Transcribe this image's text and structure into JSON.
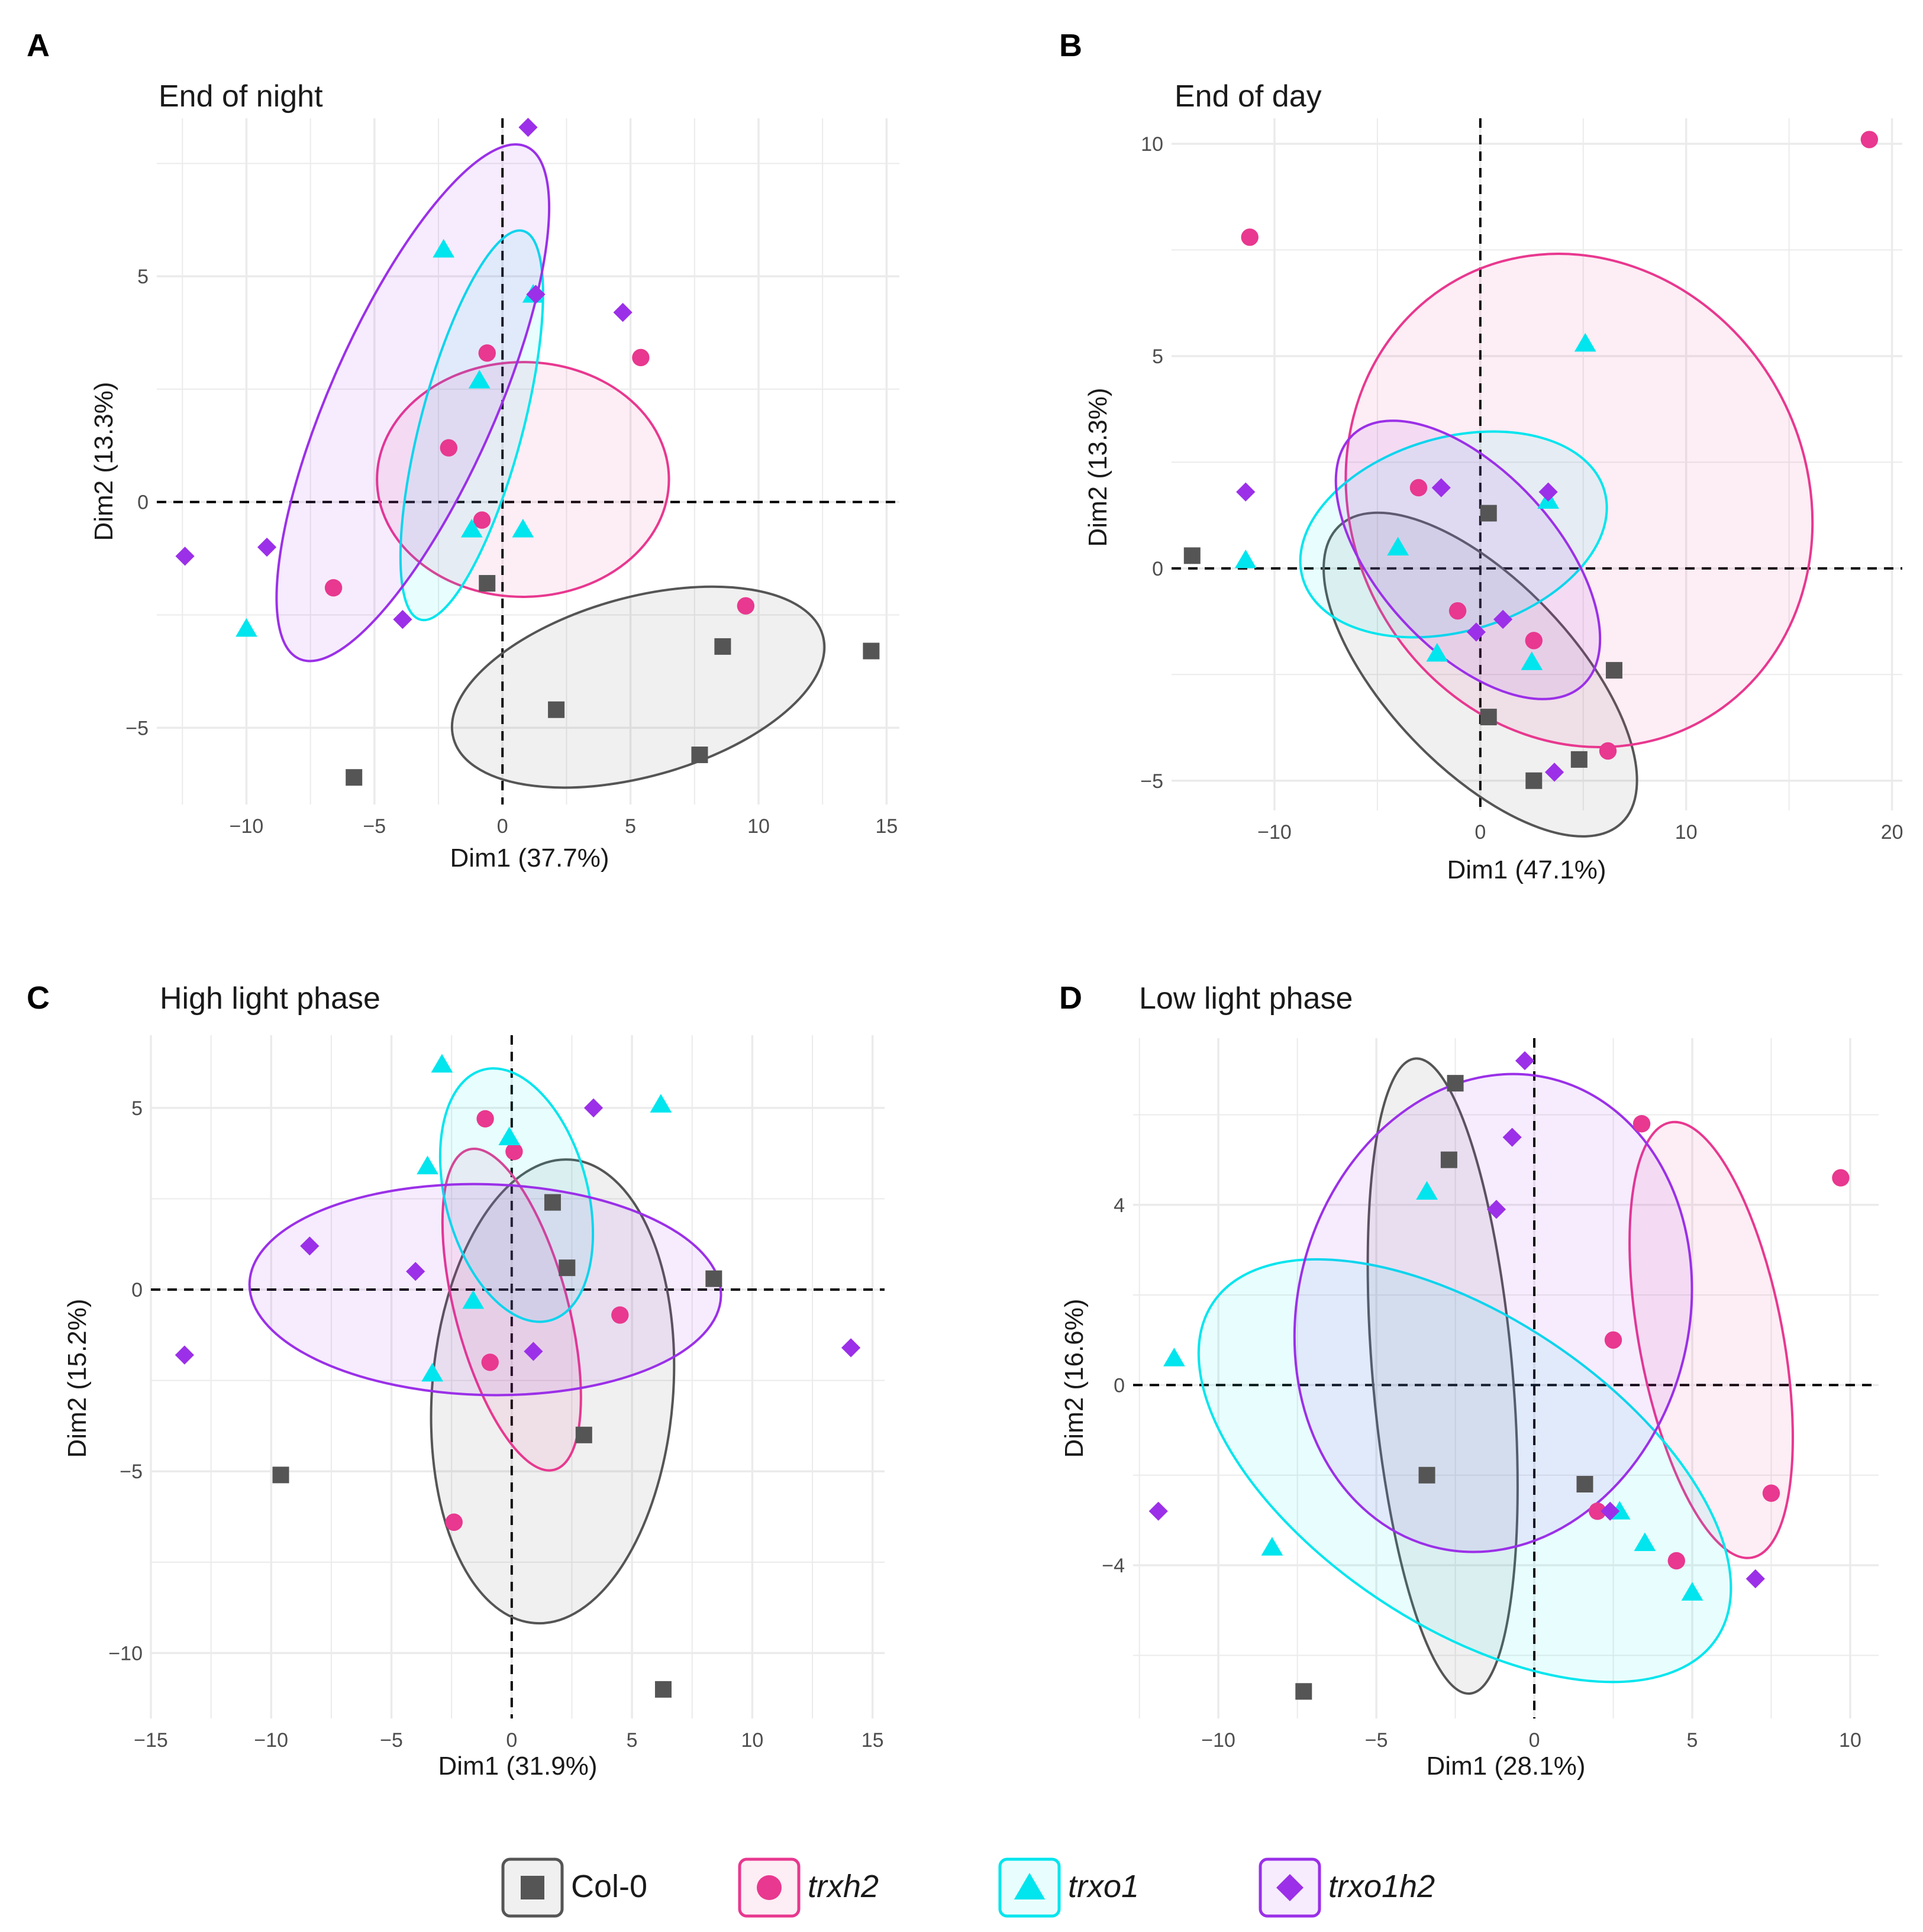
{
  "colors": {
    "Col-0": "#555555",
    "trxh2": "#e8388f",
    "trxo1": "#00e5ee",
    "trxo1h2": "#9b30e8",
    "grid": "#ebebeb",
    "axis_text": "#4d4d4d"
  },
  "legend": {
    "entries": [
      {
        "group": "Col-0",
        "label": "Col-0",
        "italic": false,
        "shape": "square"
      },
      {
        "group": "trxh2",
        "label": "trxh2",
        "italic": true,
        "shape": "circle"
      },
      {
        "group": "trxo1",
        "label": "trxo1",
        "italic": true,
        "shape": "triangle"
      },
      {
        "group": "trxo1h2",
        "label": "trxo1h2",
        "italic": true,
        "shape": "diamond"
      }
    ]
  },
  "chart_data": [
    {
      "panel": "A",
      "type": "scatter",
      "title": "End of night",
      "xlabel": "Dim1 (37.7%)",
      "ylabel": "Dim2 (13.3%)",
      "xlim": [
        -13.5,
        15.5
      ],
      "ylim": [
        -6.7,
        8.5
      ],
      "xticks": [
        -10,
        -5,
        0,
        5,
        10,
        15
      ],
      "yticks": [
        -5,
        0,
        5
      ],
      "xticklabels": [
        "−10",
        "−5",
        "0",
        "5",
        "10",
        "15"
      ],
      "yticklabels": [
        "−5",
        "0",
        "5"
      ],
      "series": [
        {
          "name": "Col-0",
          "points": [
            [
              -0.6,
              -1.8
            ],
            [
              2.1,
              -4.6
            ],
            [
              8.6,
              -3.2
            ],
            [
              14.4,
              -3.3
            ],
            [
              7.7,
              -5.6
            ],
            [
              -5.8,
              -6.1
            ]
          ],
          "ellipse": {
            "cx": 5.3,
            "cy": -4.1,
            "rx": 7.3,
            "ry": 2.0,
            "angle": 9
          }
        },
        {
          "name": "trxh2",
          "points": [
            [
              -0.6,
              3.3
            ],
            [
              5.4,
              3.2
            ],
            [
              -2.1,
              1.2
            ],
            [
              -0.8,
              -0.4
            ],
            [
              -6.6,
              -1.9
            ],
            [
              9.5,
              -2.3
            ]
          ],
          "ellipse": {
            "cx": 0.8,
            "cy": 0.5,
            "rx": 5.7,
            "ry": 2.6,
            "angle": 0
          }
        },
        {
          "name": "trxo1",
          "points": [
            [
              -2.3,
              5.6
            ],
            [
              1.2,
              4.6
            ],
            [
              -0.9,
              2.7
            ],
            [
              -1.2,
              -0.6
            ],
            [
              0.8,
              -0.6
            ],
            [
              -10.0,
              -2.8
            ]
          ],
          "ellipse": {
            "cx": -1.2,
            "cy": 1.7,
            "rx": 4.75,
            "ry": 1.7,
            "angle": 65
          }
        },
        {
          "name": "trxo1h2",
          "points": [
            [
              1.0,
              8.3
            ],
            [
              1.3,
              4.6
            ],
            [
              4.7,
              4.2
            ],
            [
              -9.2,
              -1.0
            ],
            [
              -12.4,
              -1.2
            ],
            [
              -3.9,
              -2.6
            ]
          ],
          "ellipse": {
            "cx": -3.5,
            "cy": 2.2,
            "rx": 7.2,
            "ry": 2.4,
            "angle": 52
          }
        }
      ]
    },
    {
      "panel": "B",
      "type": "scatter",
      "title": "End of day",
      "xlabel": "Dim1 (47.1%)",
      "ylabel": "Dim2 (13.3%)",
      "xlim": [
        -15.0,
        20.5
      ],
      "ylim": [
        -5.7,
        10.6
      ],
      "xticks": [
        -10,
        0,
        10,
        20
      ],
      "yticks": [
        -5,
        0,
        5,
        10
      ],
      "xticklabels": [
        "−10",
        "0",
        "10",
        "20"
      ],
      "yticklabels": [
        "−5",
        "0",
        "5",
        "10"
      ],
      "series": [
        {
          "name": "Col-0",
          "points": [
            [
              -14.0,
              0.3
            ],
            [
              0.4,
              1.3
            ],
            [
              6.5,
              -2.4
            ],
            [
              0.4,
              -3.5
            ],
            [
              4.8,
              -4.5
            ],
            [
              2.6,
              -5.0
            ]
          ],
          "ellipse": {
            "cx": 0.0,
            "cy": -2.5,
            "rx": 7.7,
            "ry": 2.4,
            "angle": -27
          }
        },
        {
          "name": "trxh2",
          "points": [
            [
              -11.2,
              7.8
            ],
            [
              18.9,
              10.1
            ],
            [
              -3.0,
              1.9
            ],
            [
              -1.1,
              -1.0
            ],
            [
              2.6,
              -1.7
            ],
            [
              6.2,
              -4.3
            ]
          ],
          "ellipse": {
            "cx": 4.8,
            "cy": 1.6,
            "rx": 10.0,
            "ry": 6.1,
            "angle": 15
          }
        },
        {
          "name": "trxo1",
          "points": [
            [
              5.1,
              5.3
            ],
            [
              3.3,
              1.6
            ],
            [
              -4.0,
              0.5
            ],
            [
              -11.4,
              0.2
            ],
            [
              -2.1,
              -2.0
            ],
            [
              2.5,
              -2.2
            ]
          ],
          "ellipse": {
            "cx": -1.3,
            "cy": 0.8,
            "rx": 7.4,
            "ry": 2.3,
            "angle": 8
          }
        },
        {
          "name": "trxo1h2",
          "points": [
            [
              -11.4,
              1.8
            ],
            [
              -1.9,
              1.9
            ],
            [
              3.3,
              1.8
            ],
            [
              -0.2,
              -1.5
            ],
            [
              1.1,
              -1.2
            ],
            [
              3.6,
              -4.8
            ]
          ],
          "ellipse": {
            "cx": -0.6,
            "cy": 0.2,
            "rx": 6.3,
            "ry": 2.3,
            "angle": -28
          }
        }
      ]
    },
    {
      "panel": "C",
      "type": "scatter",
      "title": "High light phase",
      "xlabel": "Dim1 (31.9%)",
      "ylabel": "Dim2 (15.2%)",
      "xlim": [
        -15.0,
        15.5
      ],
      "ylim": [
        -11.8,
        7.0
      ],
      "xticks": [
        -15,
        -10,
        -5,
        0,
        5,
        10,
        15
      ],
      "yticks": [
        -10,
        -5,
        0,
        5
      ],
      "xticklabels": [
        "−15",
        "−10",
        "−5",
        "0",
        "5",
        "10",
        "15"
      ],
      "yticklabels": [
        "−10",
        "−5",
        "0",
        "5"
      ],
      "series": [
        {
          "name": "Col-0",
          "points": [
            [
              1.7,
              2.4
            ],
            [
              2.3,
              0.6
            ],
            [
              8.4,
              0.3
            ],
            [
              3.0,
              -4.0
            ],
            [
              -9.6,
              -5.1
            ],
            [
              6.3,
              -11.0
            ]
          ],
          "ellipse": {
            "cx": 1.7,
            "cy": -2.8,
            "rx": 5.0,
            "ry": 6.4,
            "angle": -3
          }
        },
        {
          "name": "trxh2",
          "points": [
            [
              -1.1,
              4.7
            ],
            [
              0.1,
              3.8
            ],
            [
              4.5,
              -0.7
            ],
            [
              -0.9,
              -2.0
            ],
            [
              -2.4,
              -6.4
            ]
          ],
          "ellipse": {
            "cx": 0.0,
            "cy": -0.55,
            "rx": 2.3,
            "ry": 4.6,
            "angle": 10
          }
        },
        {
          "name": "trxo1",
          "points": [
            [
              -2.9,
              6.2
            ],
            [
              6.2,
              5.1
            ],
            [
              -0.1,
              4.2
            ],
            [
              -3.5,
              3.4
            ],
            [
              -1.6,
              -0.3
            ],
            [
              -3.3,
              -2.3
            ]
          ],
          "ellipse": {
            "cx": 0.2,
            "cy": 2.6,
            "rx": 2.9,
            "ry": 3.6,
            "angle": 10
          }
        },
        {
          "name": "trxo1h2",
          "points": [
            [
              3.4,
              5.0
            ],
            [
              -8.4,
              1.2
            ],
            [
              -4.0,
              0.5
            ],
            [
              0.9,
              -1.7
            ],
            [
              -13.6,
              -1.8
            ],
            [
              14.1,
              -1.6
            ]
          ],
          "ellipse": {
            "cx": -1.1,
            "cy": 0.0,
            "rx": 9.8,
            "ry": 2.9,
            "angle": -1
          }
        }
      ]
    },
    {
      "panel": "D",
      "type": "scatter",
      "title": "Low light phase",
      "xlabel": "Dim1 (28.1%)",
      "ylabel": "Dim2 (16.6%)",
      "xlim": [
        -12.7,
        10.9
      ],
      "ylim": [
        -7.4,
        7.7
      ],
      "xticks": [
        -10,
        -5,
        0,
        5,
        10
      ],
      "yticks": [
        -4,
        0,
        4
      ],
      "xticklabels": [
        "−10",
        "−5",
        "0",
        "5",
        "10"
      ],
      "yticklabels": [
        "−4",
        "0",
        "4"
      ],
      "series": [
        {
          "name": "Col-0",
          "points": [
            [
              -2.5,
              6.7
            ],
            [
              -2.7,
              5.0
            ],
            [
              -3.4,
              -2.0
            ],
            [
              1.6,
              -2.2
            ],
            [
              -7.3,
              -6.8
            ]
          ],
          "ellipse": {
            "cx": -2.9,
            "cy": 0.2,
            "rx": 7.1,
            "ry": 2.2,
            "angle": -83
          }
        },
        {
          "name": "trxh2",
          "points": [
            [
              3.4,
              5.8
            ],
            [
              9.7,
              4.6
            ],
            [
              2.5,
              1.0
            ],
            [
              7.5,
              -2.4
            ],
            [
              2.0,
              -2.8
            ],
            [
              4.5,
              -3.9
            ]
          ],
          "ellipse": {
            "cx": 5.6,
            "cy": 1.0,
            "rx": 5.0,
            "ry": 2.2,
            "angle": -75
          }
        },
        {
          "name": "trxo1",
          "points": [
            [
              -3.4,
              4.3
            ],
            [
              -11.4,
              0.6
            ],
            [
              -8.3,
              -3.6
            ],
            [
              2.7,
              -2.8
            ],
            [
              3.5,
              -3.5
            ],
            [
              5.0,
              -4.6
            ]
          ],
          "ellipse": {
            "cx": -2.2,
            "cy": -1.9,
            "rx": 8.8,
            "ry": 3.6,
            "angle": -25
          }
        },
        {
          "name": "trxo1h2",
          "points": [
            [
              -0.3,
              7.2
            ],
            [
              -0.7,
              5.5
            ],
            [
              -1.2,
              3.9
            ],
            [
              2.4,
              -2.8
            ],
            [
              7.0,
              -4.3
            ],
            [
              -11.9,
              -2.8
            ]
          ],
          "ellipse": {
            "cx": -1.3,
            "cy": 1.6,
            "rx": 6.1,
            "ry": 5.4,
            "angle": -10
          }
        }
      ]
    }
  ]
}
